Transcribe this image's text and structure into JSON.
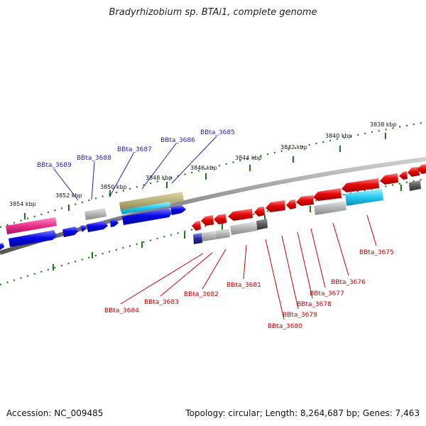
{
  "header": {
    "title": "Bradyrhizobium sp. BTAi1, complete genome"
  },
  "footer": {
    "accession": "Accession: NC_009485",
    "summary": "Topology: circular; Length: 8,264,687 bp; Genes: 7,463"
  },
  "colors": {
    "forward_label": "#1f1fbf",
    "reverse_label": "#cc0000",
    "forward_gene": "#0a0ae6",
    "reverse_gene": "#e60a0a",
    "grey_gene": "#b0b0b0",
    "pink_gene": "#e8318a",
    "cyan_gene": "#22c8f0",
    "khaki_gene": "#b5ad75",
    "tick": "#1a7a1a",
    "backbone": "#8a8a8a"
  },
  "scale_labels": [
    "3838 kbp",
    "3840 kbp",
    "3842 kbp",
    "3844 kbp",
    "3846 kbp",
    "3848 kbp",
    "3850 kbp",
    "3852 kbp",
    "3854 kbp"
  ],
  "forward_labels": [
    "BBta_3685",
    "BBta_3686",
    "BBta_3687",
    "BBta_3688",
    "BBta_3689"
  ],
  "reverse_labels": [
    "BBta_3675",
    "BBta_3676",
    "BBta_3677",
    "BBta_3678",
    "BBta_3679",
    "BBta_3680",
    "BBta_3681",
    "BBta_3682",
    "BBta_3683",
    "BBta_3684"
  ]
}
